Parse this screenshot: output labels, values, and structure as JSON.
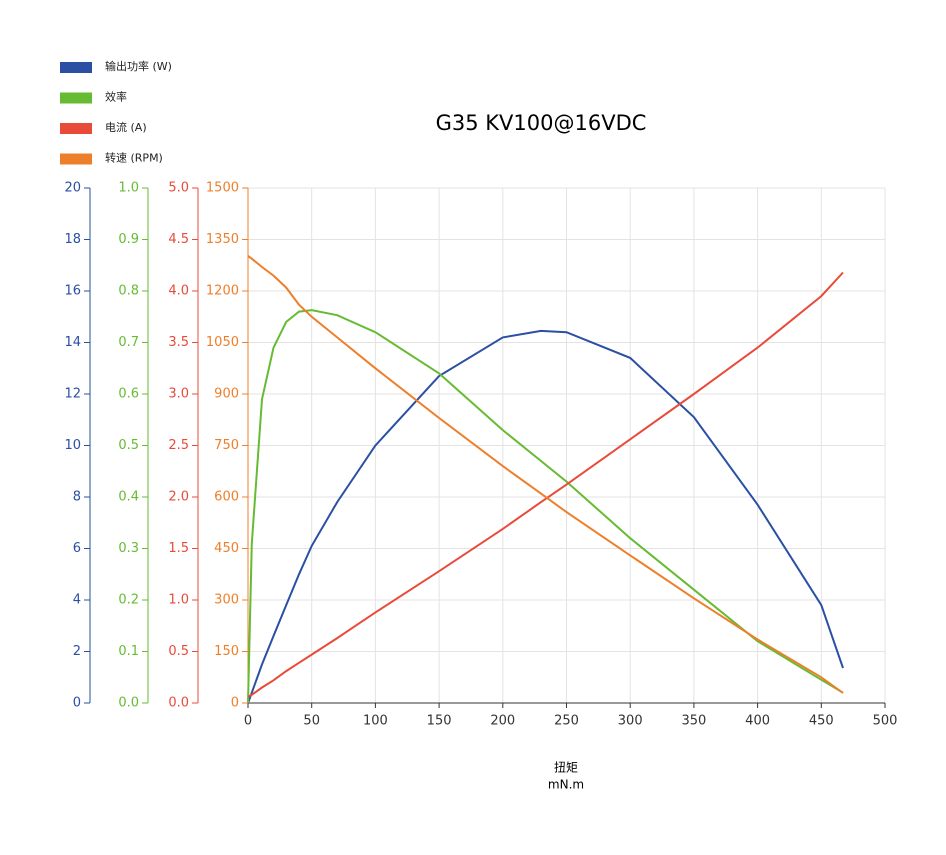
{
  "chart_data": {
    "type": "line",
    "title": "G35 KV100@16VDC",
    "x_label": "扭矩",
    "x_unit": "mN.m",
    "x": [
      0,
      3,
      11,
      20,
      30,
      40,
      50,
      70,
      100,
      150,
      200,
      230,
      250,
      300,
      350,
      400,
      450,
      467
    ],
    "xlim": [
      0,
      500
    ],
    "xticks": [
      0,
      50,
      100,
      150,
      200,
      250,
      300,
      350,
      400,
      450,
      500
    ],
    "ylim": [
      0,
      20
    ],
    "yticks": [
      0,
      2,
      4,
      6,
      8,
      10,
      12,
      14,
      16,
      18,
      20
    ],
    "y2lim": [
      0,
      1
    ],
    "y2ticks": [
      {
        "value": 0,
        "label": "0.0"
      },
      0.1,
      0.2,
      0.3,
      0.4,
      0.5,
      0.6,
      0.7,
      0.8,
      0.9,
      {
        "value": 1,
        "label": "1.0"
      }
    ],
    "y3lim": [
      0,
      5
    ],
    "y3ticks": [
      {
        "value": 0,
        "label": "0.0"
      },
      0.5,
      {
        "value": 1,
        "label": "1.0"
      },
      1.5,
      {
        "value": 2,
        "label": "2.0"
      },
      2.5,
      {
        "value": 3,
        "label": "3.0"
      },
      3.5,
      {
        "value": 4,
        "label": "4.0"
      },
      4.5,
      {
        "value": 5,
        "label": "5.0"
      }
    ],
    "y4lim": [
      0,
      1500
    ],
    "y4ticks": [
      0,
      150,
      300,
      450,
      600,
      750,
      900,
      1050,
      1200,
      1350,
      1500
    ],
    "grid": true,
    "series": [
      {
        "name": "输出功率 (W)",
        "color": "#2a4fa3",
        "axis": "y",
        "values": [
          0,
          0.4,
          1.5,
          2.6,
          3.8,
          5.0,
          6.1,
          7.8,
          10.0,
          12.7,
          14.2,
          14.45,
          14.4,
          13.4,
          11.1,
          7.7,
          3.8,
          1.36
        ]
      },
      {
        "name": "效率",
        "color": "#66bb33",
        "axis": "y2",
        "values": [
          0,
          0.31,
          0.59,
          0.69,
          0.74,
          0.76,
          0.763,
          0.753,
          0.72,
          0.64,
          0.53,
          0.47,
          0.43,
          0.32,
          0.22,
          0.12,
          0.045,
          0.02
        ]
      },
      {
        "name": "电流 (A)",
        "color": "#e84b3a",
        "axis": "y3",
        "values": [
          0.06,
          0.08,
          0.15,
          0.22,
          0.31,
          0.39,
          0.47,
          0.63,
          0.88,
          1.28,
          1.69,
          1.95,
          2.12,
          2.56,
          3.0,
          3.45,
          3.95,
          4.18
        ]
      },
      {
        "name": "转速 (RPM)",
        "color": "#ee7f2a",
        "axis": "y4",
        "values": [
          1302,
          1294,
          1270,
          1245,
          1210,
          1160,
          1125,
          1065,
          975,
          830,
          690,
          610,
          556,
          430,
          305,
          185,
          75,
          29
        ]
      }
    ]
  }
}
